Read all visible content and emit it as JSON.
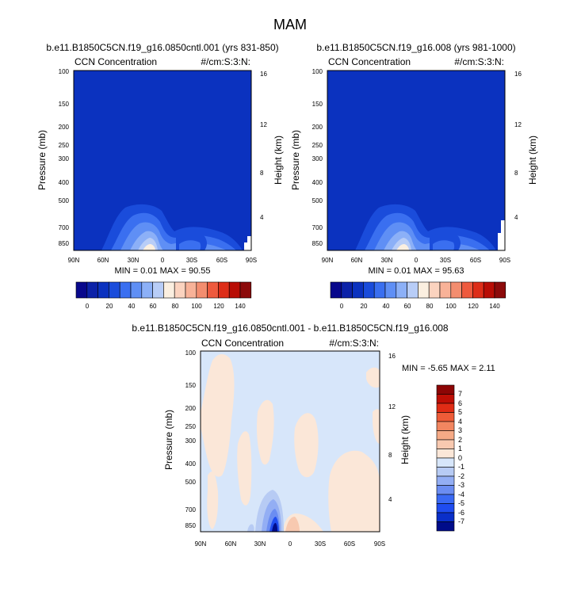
{
  "figure_title": "MAM",
  "colors": {
    "abs_levels": [
      "#08088c",
      "#0c22a8",
      "#0b32bf",
      "#1a4cdb",
      "#3a6ff0",
      "#5f8ff5",
      "#8cb0f7",
      "#b8cdf7",
      "#fbefe0",
      "#fbd3bf",
      "#f8b298",
      "#f38d6f",
      "#ee5a3e",
      "#dd2d18",
      "#b80d05",
      "#8c0a0a"
    ],
    "diff_levels": [
      "#000c8a",
      "#0a2fc9",
      "#1f4cf0",
      "#3a69f4",
      "#6b8df2",
      "#93aef4",
      "#b7cbf4",
      "#d7e6fa",
      "#fbe7d8",
      "#f8c9b0",
      "#f6aa86",
      "#f28660",
      "#ee5c38",
      "#e02c15",
      "#be0e05",
      "#8d0505"
    ]
  },
  "chart_data": [
    {
      "type": "contour",
      "panel": "control",
      "title": "b.e11.B1850C5CN.f19_g16.0850cntl.001 (yrs 831-850)",
      "left_label": "CCN Concentration",
      "right_label": "#/cm:S:3:N:",
      "ylabel": "Pressure (mb)",
      "ylabel_right": "Height (km)",
      "pressure_ticks": [
        "100",
        "150",
        "200",
        "250",
        "300",
        "400",
        "500",
        "700",
        "850"
      ],
      "height_ticks": [
        "16",
        "12",
        "8",
        "4"
      ],
      "x_ticks": [
        "90N",
        "60N",
        "30N",
        "0",
        "30S",
        "60S",
        "90S"
      ],
      "stats_text": "MIN =  0.01  MAX =  90.55",
      "colorbar_labels": [
        "0",
        "20",
        "40",
        "60",
        "80",
        "100",
        "120",
        "140"
      ]
    },
    {
      "type": "contour",
      "panel": "test",
      "title": "b.e11.B1850C5CN.f19_g16.008 (yrs 981-1000)",
      "left_label": "CCN Concentration",
      "right_label": "#/cm:S:3:N:",
      "ylabel": "Pressure (mb)",
      "ylabel_right": "Height (km)",
      "pressure_ticks": [
        "100",
        "150",
        "200",
        "250",
        "300",
        "400",
        "500",
        "700",
        "850"
      ],
      "height_ticks": [
        "16",
        "12",
        "8",
        "4"
      ],
      "x_ticks": [
        "90N",
        "60N",
        "30N",
        "0",
        "30S",
        "60S",
        "90S"
      ],
      "stats_text": "MIN =  0.01  MAX =  95.63",
      "colorbar_labels": [
        "0",
        "20",
        "40",
        "60",
        "80",
        "100",
        "120",
        "140"
      ]
    },
    {
      "type": "contour",
      "panel": "difference",
      "title": "b.e11.B1850C5CN.f19_g16.0850cntl.001 - b.e11.B1850C5CN.f19_g16.008",
      "left_label": "CCN Concentration",
      "right_label": "#/cm:S:3:N:",
      "ylabel": "Pressure (mb)",
      "ylabel_right": "Height (km)",
      "pressure_ticks": [
        "100",
        "150",
        "200",
        "250",
        "300",
        "400",
        "500",
        "700",
        "850"
      ],
      "height_ticks": [
        "16",
        "12",
        "8",
        "4"
      ],
      "x_ticks": [
        "90N",
        "60N",
        "30N",
        "0",
        "30S",
        "60S",
        "90S"
      ],
      "stats_text": "MIN = -5.65  MAX =   2.11",
      "colorbar_labels": [
        "7",
        "6",
        "5",
        "4",
        "3",
        "2",
        "1",
        "0",
        "-1",
        "-2",
        "-3",
        "-4",
        "-5",
        "-6",
        "-7"
      ]
    }
  ]
}
